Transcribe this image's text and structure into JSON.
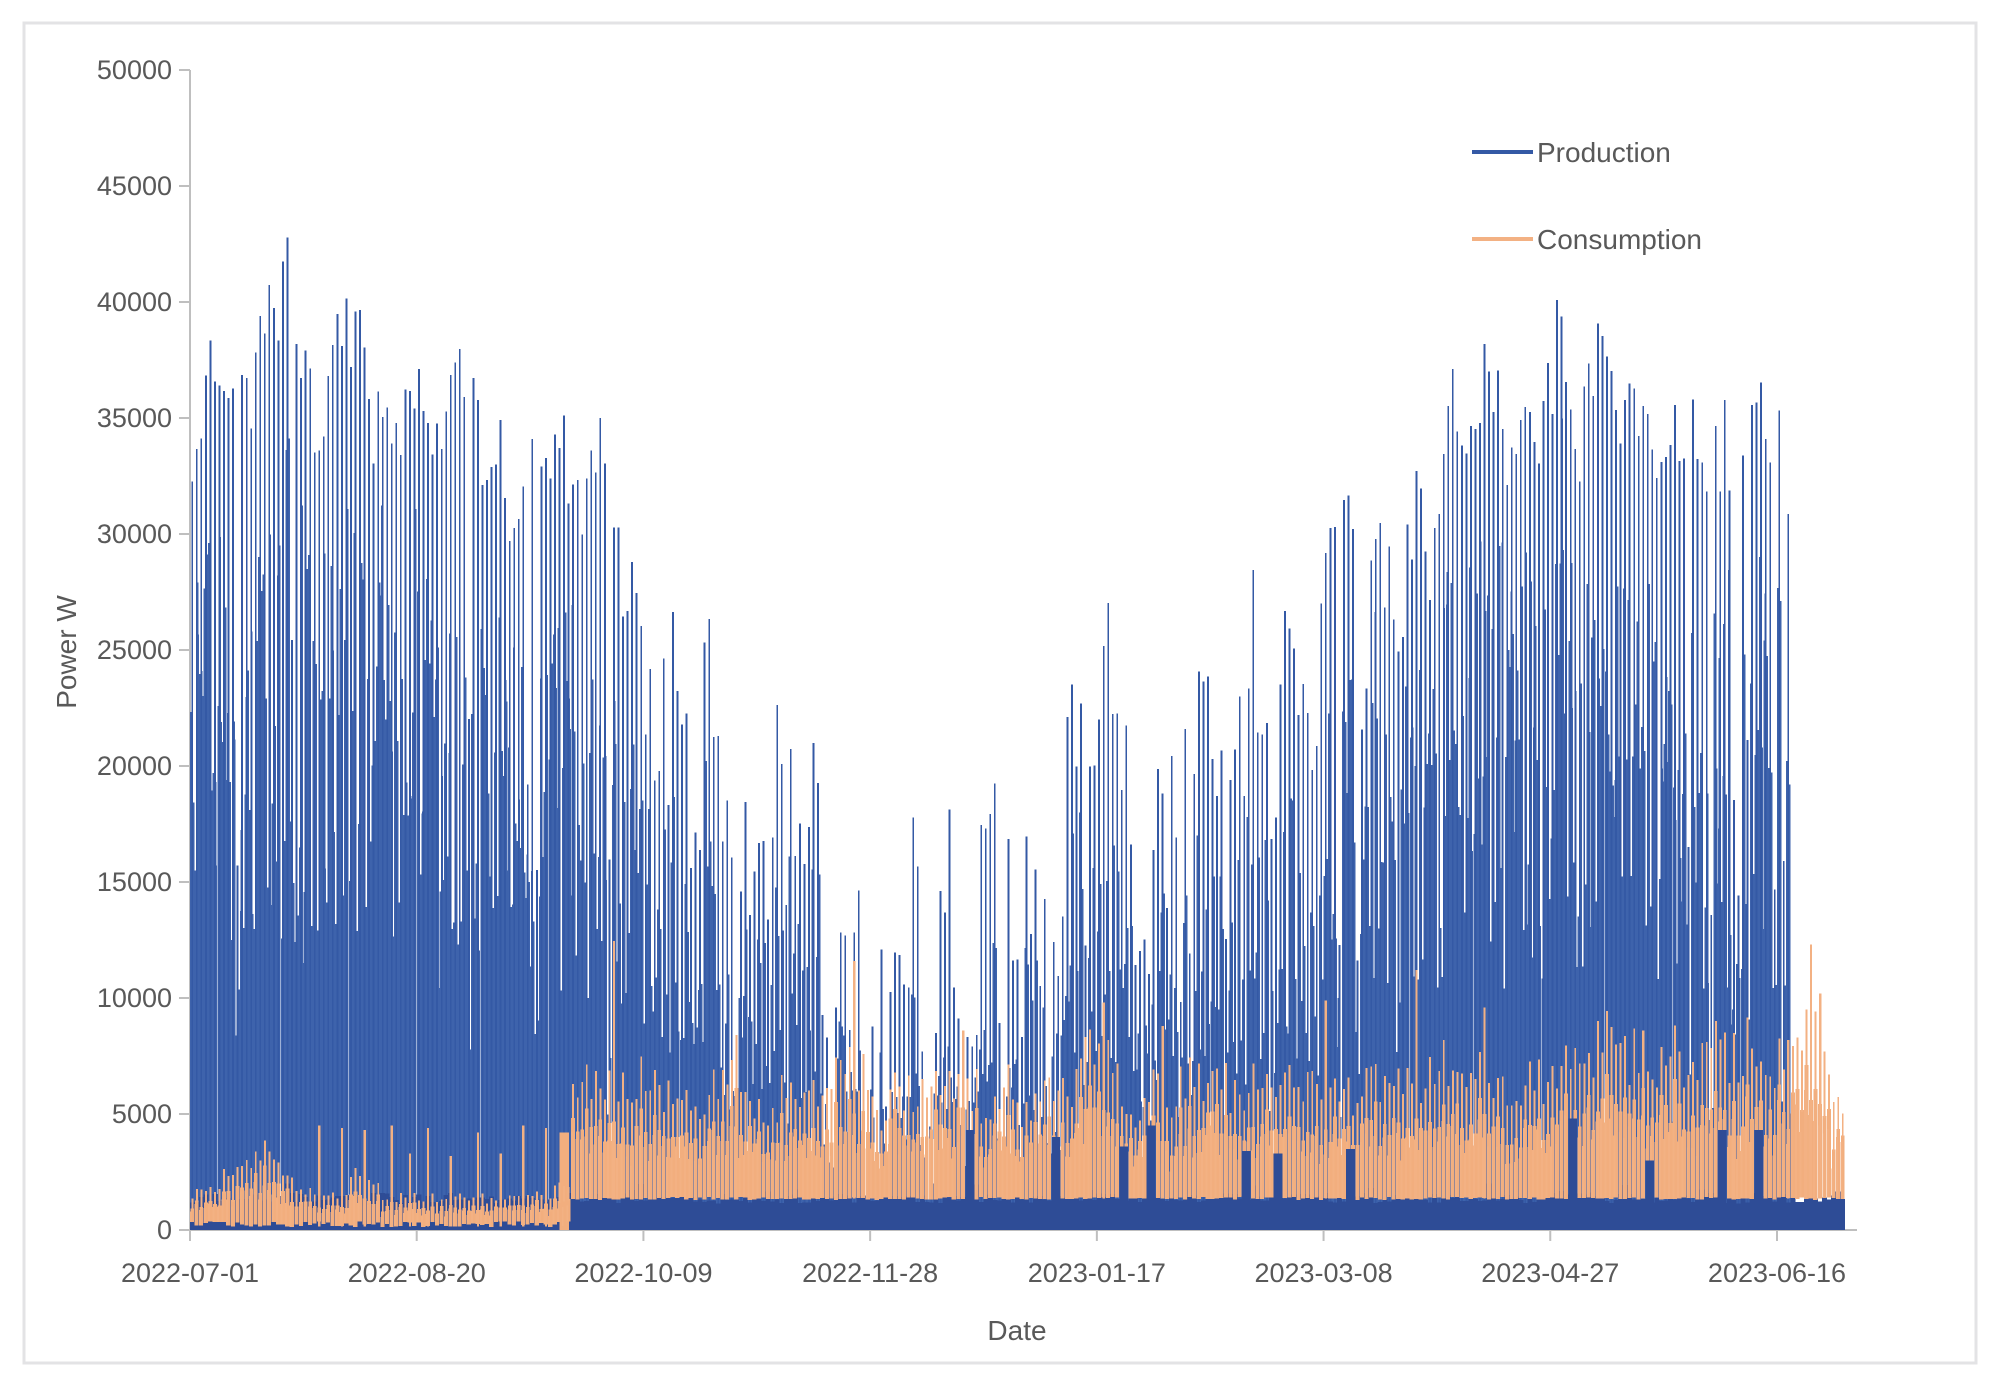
{
  "page": {
    "background": "#ffffff",
    "frame_border_color": "#e4e4e6"
  },
  "axes": {
    "x_title": "Date",
    "y_title": "Power W",
    "text_color": "#595959",
    "axis_line_color": "#bfbfbf"
  },
  "legend": {
    "position": "top-right-inside",
    "items": [
      {
        "label": "Production",
        "color": "#3459a5"
      },
      {
        "label": "Consumption",
        "color": "#f3b183"
      }
    ]
  },
  "chart_data": {
    "type": "line",
    "title": "",
    "xlabel": "Date",
    "ylabel": "Power W",
    "grid": "off",
    "ylim": [
      0,
      50000
    ],
    "y_tick_step": 5000,
    "y_tick_labels": [
      "0",
      "5000",
      "10000",
      "15000",
      "20000",
      "25000",
      "30000",
      "35000",
      "40000",
      "45000",
      "50000"
    ],
    "x_ticks": {
      "labels": [
        "2022-07-01",
        "2022-08-20",
        "2022-10-09",
        "2022-11-28",
        "2023-01-17",
        "2023-03-08",
        "2023-04-27",
        "2023-06-16"
      ],
      "day_offsets": [
        0,
        50,
        100,
        150,
        200,
        250,
        300,
        350
      ]
    },
    "x_total_days": 365,
    "series": [
      {
        "name": "Production",
        "color": "#3459a5",
        "base_color": "#2e4c96",
        "data_end_day": 352,
        "night_base_band_w": [
          0,
          1500
        ],
        "daily_peak_envelope_w": [
          [
            0,
            34000
          ],
          [
            4,
            38800
          ],
          [
            8,
            36500
          ],
          [
            12,
            37000
          ],
          [
            16,
            40300
          ],
          [
            21,
            42900
          ],
          [
            24,
            39000
          ],
          [
            28,
            36200
          ],
          [
            32,
            39500
          ],
          [
            36,
            41500
          ],
          [
            40,
            36500
          ],
          [
            44,
            35200
          ],
          [
            48,
            38700
          ],
          [
            52,
            35800
          ],
          [
            56,
            37200
          ],
          [
            60,
            39700
          ],
          [
            64,
            34800
          ],
          [
            68,
            35600
          ],
          [
            71,
            30300
          ],
          [
            75,
            35200
          ],
          [
            78,
            33500
          ],
          [
            82,
            35100
          ],
          [
            86,
            33000
          ],
          [
            90,
            35300
          ],
          [
            94,
            30800
          ],
          [
            98,
            28500
          ],
          [
            102,
            26500
          ],
          [
            106,
            26800
          ],
          [
            110,
            23800
          ],
          [
            114,
            26700
          ],
          [
            118,
            22500
          ],
          [
            122,
            24200
          ],
          [
            126,
            20000
          ],
          [
            130,
            23500
          ],
          [
            134,
            25000
          ],
          [
            138,
            19800
          ],
          [
            142,
            15400
          ],
          [
            146,
            19400
          ],
          [
            150,
            15300
          ],
          [
            154,
            12000
          ],
          [
            158,
            18700
          ],
          [
            162,
            15600
          ],
          [
            166,
            19600
          ],
          [
            170,
            14200
          ],
          [
            174,
            17700
          ],
          [
            178,
            19800
          ],
          [
            182,
            15800
          ],
          [
            186,
            18600
          ],
          [
            190,
            14500
          ],
          [
            194,
            25500
          ],
          [
            198,
            20800
          ],
          [
            202,
            28200
          ],
          [
            206,
            24900
          ],
          [
            210,
            18500
          ],
          [
            214,
            23800
          ],
          [
            218,
            20500
          ],
          [
            222,
            25400
          ],
          [
            226,
            23600
          ],
          [
            230,
            22500
          ],
          [
            234,
            28600
          ],
          [
            238,
            25200
          ],
          [
            242,
            28500
          ],
          [
            246,
            24800
          ],
          [
            250,
            30700
          ],
          [
            254,
            34500
          ],
          [
            258,
            28000
          ],
          [
            262,
            30900
          ],
          [
            266,
            28500
          ],
          [
            270,
            32800
          ],
          [
            274,
            30500
          ],
          [
            278,
            37500
          ],
          [
            282,
            35600
          ],
          [
            286,
            39300
          ],
          [
            290,
            35000
          ],
          [
            294,
            37400
          ],
          [
            298,
            36000
          ],
          [
            302,
            41600
          ],
          [
            306,
            35500
          ],
          [
            310,
            39300
          ],
          [
            314,
            36300
          ],
          [
            318,
            38000
          ],
          [
            322,
            34600
          ],
          [
            326,
            35000
          ],
          [
            330,
            37300
          ],
          [
            334,
            34000
          ],
          [
            338,
            35800
          ],
          [
            342,
            34200
          ],
          [
            346,
            37300
          ],
          [
            350,
            35700
          ],
          [
            352,
            33000
          ]
        ]
      },
      {
        "name": "Consumption",
        "color": "#f3b183",
        "dense_color": "#f2ae7e",
        "step_up_day": 84,
        "night_base_w": {
          "before_step": 300,
          "after_step": 1350
        },
        "pre_step_block": {
          "days": [
            81.5,
            83.6
          ],
          "top_w": 4200
        },
        "daily_peak_envelope_w": [
          [
            0,
            1500
          ],
          [
            5,
            2000
          ],
          [
            9,
            2600
          ],
          [
            13,
            3200
          ],
          [
            17,
            4000
          ],
          [
            19,
            3400
          ],
          [
            21,
            2200
          ],
          [
            25,
            1700
          ],
          [
            30,
            1700
          ],
          [
            34,
            1700
          ],
          [
            36,
            2500
          ],
          [
            40,
            2400
          ],
          [
            42,
            1500
          ],
          [
            50,
            1400
          ],
          [
            58,
            1500
          ],
          [
            66,
            1400
          ],
          [
            74,
            1500
          ],
          [
            80,
            1700
          ],
          [
            83,
            2000
          ],
          [
            84,
            6200
          ],
          [
            87,
            6600
          ],
          [
            90,
            5800
          ],
          [
            93,
            7000
          ],
          [
            96,
            6300
          ],
          [
            100,
            6600
          ],
          [
            104,
            5600
          ],
          [
            108,
            6100
          ],
          [
            112,
            5300
          ],
          [
            116,
            6400
          ],
          [
            120,
            7600
          ],
          [
            124,
            5900
          ],
          [
            128,
            5100
          ],
          [
            132,
            6800
          ],
          [
            136,
            5600
          ],
          [
            140,
            6400
          ],
          [
            144,
            7400
          ],
          [
            148,
            6600
          ],
          [
            152,
            5200
          ],
          [
            156,
            6600
          ],
          [
            160,
            5600
          ],
          [
            164,
            6900
          ],
          [
            168,
            6100
          ],
          [
            172,
            6400
          ],
          [
            176,
            5000
          ],
          [
            180,
            6600
          ],
          [
            184,
            5200
          ],
          [
            188,
            6300
          ],
          [
            192,
            5700
          ],
          [
            196,
            7000
          ],
          [
            200,
            8300
          ],
          [
            204,
            6400
          ],
          [
            208,
            5400
          ],
          [
            212,
            6900
          ],
          [
            216,
            5700
          ],
          [
            220,
            7100
          ],
          [
            224,
            5900
          ],
          [
            228,
            6600
          ],
          [
            232,
            5200
          ],
          [
            236,
            7300
          ],
          [
            240,
            6200
          ],
          [
            244,
            7000
          ],
          [
            248,
            6000
          ],
          [
            252,
            6700
          ],
          [
            256,
            5700
          ],
          [
            260,
            6600
          ],
          [
            264,
            5600
          ],
          [
            268,
            7200
          ],
          [
            272,
            6300
          ],
          [
            276,
            7900
          ],
          [
            280,
            6200
          ],
          [
            284,
            6800
          ],
          [
            288,
            6400
          ],
          [
            292,
            5800
          ],
          [
            296,
            7100
          ],
          [
            300,
            6200
          ],
          [
            304,
            8300
          ],
          [
            308,
            7000
          ],
          [
            312,
            8400
          ],
          [
            316,
            7400
          ],
          [
            320,
            8300
          ],
          [
            324,
            7300
          ],
          [
            328,
            7900
          ],
          [
            332,
            6700
          ],
          [
            336,
            8100
          ],
          [
            340,
            7200
          ],
          [
            344,
            8300
          ],
          [
            348,
            7000
          ],
          [
            352,
            7700
          ],
          [
            355,
            8300
          ],
          [
            358,
            9200
          ],
          [
            360,
            8000
          ],
          [
            362,
            6000
          ],
          [
            364,
            4500
          ]
        ],
        "spike_peaks_w": [
          [
            28,
            4500
          ],
          [
            33,
            4400
          ],
          [
            38,
            4300
          ],
          [
            44,
            4500
          ],
          [
            48,
            3300
          ],
          [
            52,
            4400
          ],
          [
            57,
            3200
          ],
          [
            63,
            4200
          ],
          [
            68,
            3300
          ],
          [
            73,
            4500
          ],
          [
            78,
            4400
          ],
          [
            93,
            12450
          ],
          [
            120,
            8400
          ],
          [
            146,
            11600
          ],
          [
            170,
            8600
          ],
          [
            201,
            9800
          ],
          [
            214,
            8800
          ],
          [
            250,
            9900
          ],
          [
            270,
            11200
          ],
          [
            285,
            9600
          ],
          [
            310,
            9000
          ],
          [
            320,
            8600
          ],
          [
            340,
            8500
          ],
          [
            352,
            8200
          ],
          [
            356,
            9500
          ],
          [
            357,
            12300
          ],
          [
            359,
            10200
          ]
        ]
      }
    ],
    "data_gap_blocks_w": [
      [
        171,
        4300
      ],
      [
        190,
        4000
      ],
      [
        205,
        3600
      ],
      [
        211,
        4500
      ],
      [
        232,
        3400
      ],
      [
        239,
        3300
      ],
      [
        255,
        3500
      ],
      [
        304,
        4800
      ],
      [
        321,
        3000
      ],
      [
        337,
        4300
      ],
      [
        345,
        4300
      ]
    ]
  }
}
